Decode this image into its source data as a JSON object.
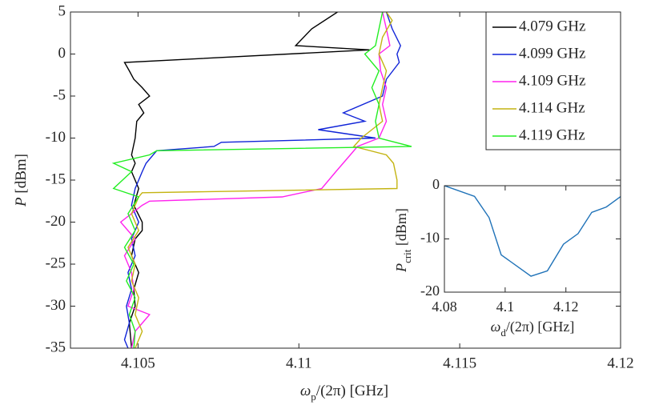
{
  "chart_data": [
    {
      "type": "line",
      "xlabel": [
        "ω",
        "p",
        "/(2π) [GHz]"
      ],
      "ylabel": [
        "P",
        " [dBm]"
      ],
      "xlim": [
        4.1029,
        4.12
      ],
      "xticks": [
        4.105,
        4.11,
        4.115,
        4.12
      ],
      "ylim": [
        -35,
        5
      ],
      "yticks": [
        5,
        0,
        -5,
        -10,
        -15,
        -20,
        -25,
        -30,
        -35
      ],
      "legend": "upper right",
      "series": [
        {
          "name": "4.079 GHz",
          "color": "#000000",
          "values": [
            5,
            3,
            1,
            0.5,
            -1,
            -2,
            -3,
            -4,
            -5,
            -6,
            -7,
            -8,
            -10,
            -12,
            -13,
            -14,
            -16,
            -18,
            -20,
            -21,
            -22,
            -24,
            -26,
            -28,
            -30,
            -32,
            -35
          ],
          "x": [
            4.1112,
            4.1104,
            4.1099,
            4.1122,
            4.10458,
            4.10473,
            4.10487,
            4.10513,
            4.10536,
            4.10502,
            4.10518,
            4.10496,
            4.10491,
            4.1048,
            4.10491,
            4.1048,
            4.10502,
            4.10487,
            4.10513,
            4.10513,
            4.10491,
            4.1048,
            4.10502,
            4.10487,
            4.10491,
            4.10473,
            4.1048
          ]
        },
        {
          "name": "4.099 GHz",
          "color": "#1024d8",
          "values": [
            5,
            3,
            1,
            0,
            -1,
            -3,
            -5,
            -7,
            -8,
            -9,
            -10,
            -10.5,
            -11,
            -11.5,
            -13,
            -14,
            -16,
            -18,
            -20,
            -22,
            -24,
            -26,
            -28,
            -30,
            -32,
            -34,
            -35
          ],
          "x": [
            4.11272,
            4.1129,
            4.11316,
            4.11305,
            4.11312,
            4.11272,
            4.1126,
            4.11138,
            4.11205,
            4.1106,
            4.11238,
            4.10759,
            4.10736,
            4.10558,
            4.10525,
            4.10513,
            4.10491,
            4.1048,
            4.10502,
            4.1048,
            4.10491,
            4.10469,
            4.1048,
            4.10464,
            4.10473,
            4.10458,
            4.10469
          ]
        },
        {
          "name": "4.109 GHz",
          "color": "#ff22ee",
          "values": [
            5,
            3,
            1,
            0,
            -2,
            -4,
            -6,
            -8,
            -10,
            -11,
            -12,
            -14,
            -16,
            -17,
            -17.5,
            -18,
            -20,
            -22,
            -24,
            -26,
            -28,
            -30,
            -31,
            -33,
            -35
          ],
          "x": [
            4.1126,
            4.11272,
            4.11283,
            4.11249,
            4.11254,
            4.11272,
            4.1126,
            4.11272,
            4.11249,
            4.11182,
            4.1116,
            4.11115,
            4.11071,
            4.10948,
            4.10536,
            4.10513,
            4.10446,
            4.10491,
            4.10458,
            4.1048,
            4.10487,
            4.10469,
            4.10536,
            4.10491,
            4.1048
          ]
        },
        {
          "name": "4.114 GHz",
          "color": "#c4b412",
          "values": [
            5,
            4,
            2,
            0,
            -2,
            -4,
            -6,
            -8,
            -10,
            -11,
            -12,
            -13,
            -15,
            -16,
            -16.5,
            -17,
            -19,
            -21,
            -23,
            -25,
            -27,
            -29,
            -31,
            -33,
            -35
          ],
          "x": [
            4.11272,
            4.1129,
            4.1126,
            4.11249,
            4.11272,
            4.1126,
            4.11249,
            4.1126,
            4.11194,
            4.11171,
            4.11272,
            4.11294,
            4.11305,
            4.11305,
            4.10513,
            4.10502,
            4.1048,
            4.10502,
            4.10469,
            4.10491,
            4.1048,
            4.10502,
            4.10491,
            4.10513,
            4.10491
          ]
        },
        {
          "name": "4.119 GHz",
          "color": "#22ee22",
          "values": [
            5,
            3,
            1,
            0,
            -2,
            -4,
            -6,
            -8,
            -10,
            -11,
            -11.5,
            -12,
            -13,
            -14,
            -16,
            -17,
            -19,
            -21,
            -23,
            -25,
            -27,
            -29,
            -31,
            -33,
            -35
          ],
          "x": [
            4.1126,
            4.11249,
            4.11238,
            4.11205,
            4.11249,
            4.11227,
            4.11249,
            4.11238,
            4.11249,
            4.1135,
            4.10558,
            4.10536,
            4.10424,
            4.1048,
            4.10424,
            4.10502,
            4.10469,
            4.10491,
            4.10458,
            4.10487,
            4.10464,
            4.10491,
            4.10473,
            4.10491,
            4.10487
          ]
        }
      ]
    },
    {
      "type": "line",
      "xlabel": [
        "ω",
        "d",
        "/(2π) [GHz]"
      ],
      "ylabel": [
        "P",
        "crit",
        " [dBm]"
      ],
      "xlim": [
        4.08,
        4.138
      ],
      "xticks": [
        4.08,
        4.1,
        4.12
      ],
      "ylim": [
        -20,
        0
      ],
      "yticks": [
        -20,
        -10,
        0
      ],
      "series": [
        {
          "color": "#1f72b8",
          "x": [
            4.08,
            4.0899,
            4.0947,
            4.0987,
            4.1085,
            4.1139,
            4.1192,
            4.124,
            4.1285,
            4.1333,
            4.1381
          ],
          "values": [
            0,
            -2,
            -6,
            -13,
            -17,
            -16,
            -11,
            -9,
            -5,
            -4,
            -2
          ]
        }
      ]
    }
  ]
}
